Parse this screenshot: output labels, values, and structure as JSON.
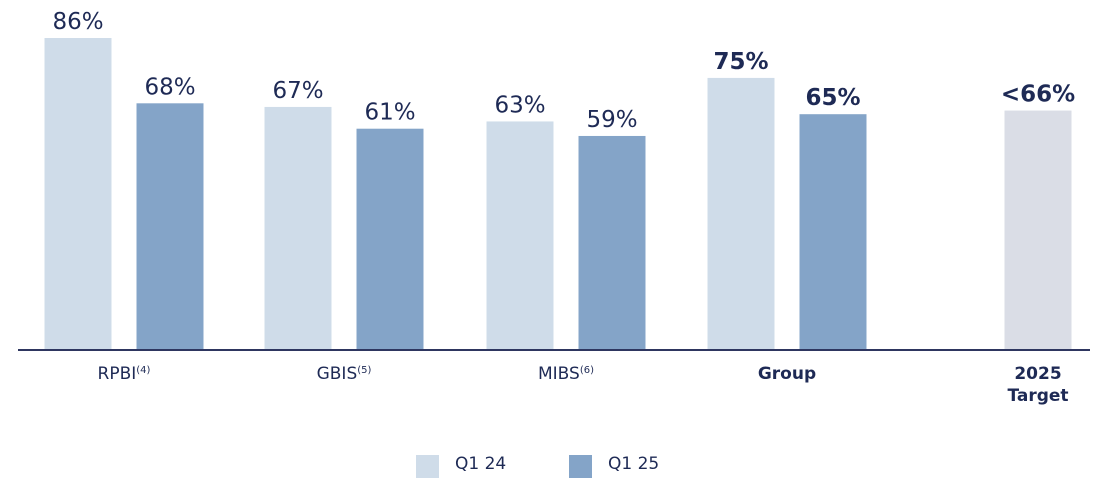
{
  "chart_data": {
    "type": "bar",
    "categories": [
      "RPBI",
      "GBIS",
      "MIBS",
      "Group",
      "2025 Target"
    ],
    "category_notes": [
      "(4)",
      "(5)",
      "(6)",
      null,
      null
    ],
    "bold": [
      false,
      false,
      false,
      true,
      true
    ],
    "series": [
      {
        "name": "Q1 24",
        "color": "#cfdce9",
        "values": [
          86,
          67,
          63,
          75,
          null
        ],
        "value_labels": [
          "86%",
          "67%",
          "63%",
          "75%",
          null
        ]
      },
      {
        "name": "Q1 25",
        "color": "#84a4c8",
        "values": [
          68,
          61,
          59,
          65,
          null
        ],
        "value_labels": [
          "68%",
          "61%",
          "59%",
          "65%",
          null
        ]
      }
    ],
    "target": {
      "value": 66,
      "value_label": "<66%",
      "color": "#dadde6"
    },
    "ylim": [
      0,
      90
    ]
  }
}
